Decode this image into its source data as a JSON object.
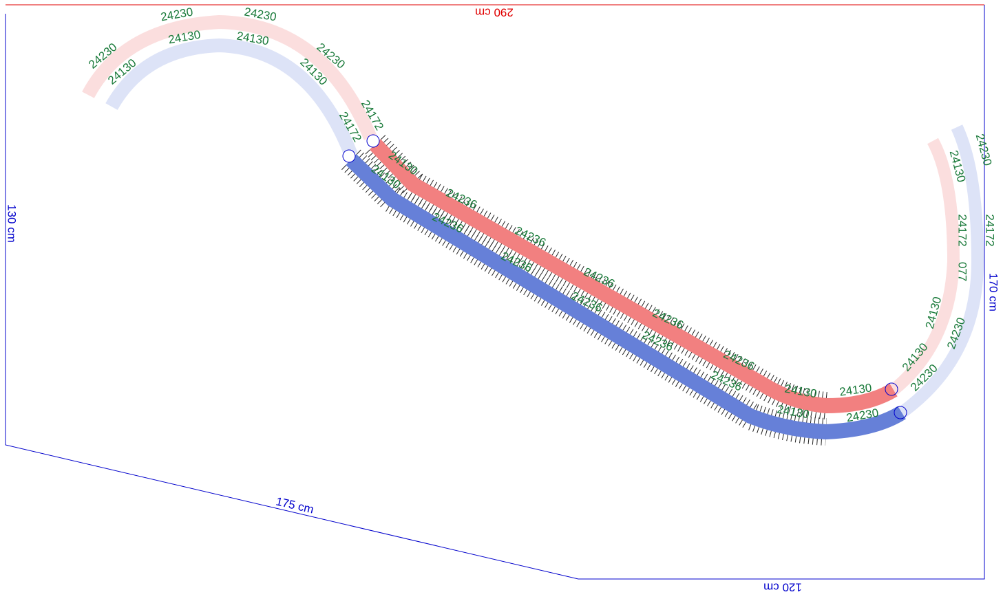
{
  "dimensions": {
    "top": "290 cm",
    "left": "130 cm",
    "diagonal": "175 cm",
    "bottom": "120 cm",
    "right": "170 cm"
  },
  "track_labels": [
    "24230",
    "24230",
    "24230",
    "24230",
    "24172",
    "24130",
    "24130",
    "24130",
    "24130",
    "24172",
    "24130",
    "24236",
    "24236",
    "24236",
    "24236",
    "24236",
    "24130",
    "24236",
    "24236",
    "24236",
    "24236",
    "24236",
    "24130",
    "24130",
    "24130",
    "24230",
    "24130",
    "24130",
    "077",
    "24172",
    "24130",
    "24230",
    "24230",
    "24172",
    "24230"
  ]
}
